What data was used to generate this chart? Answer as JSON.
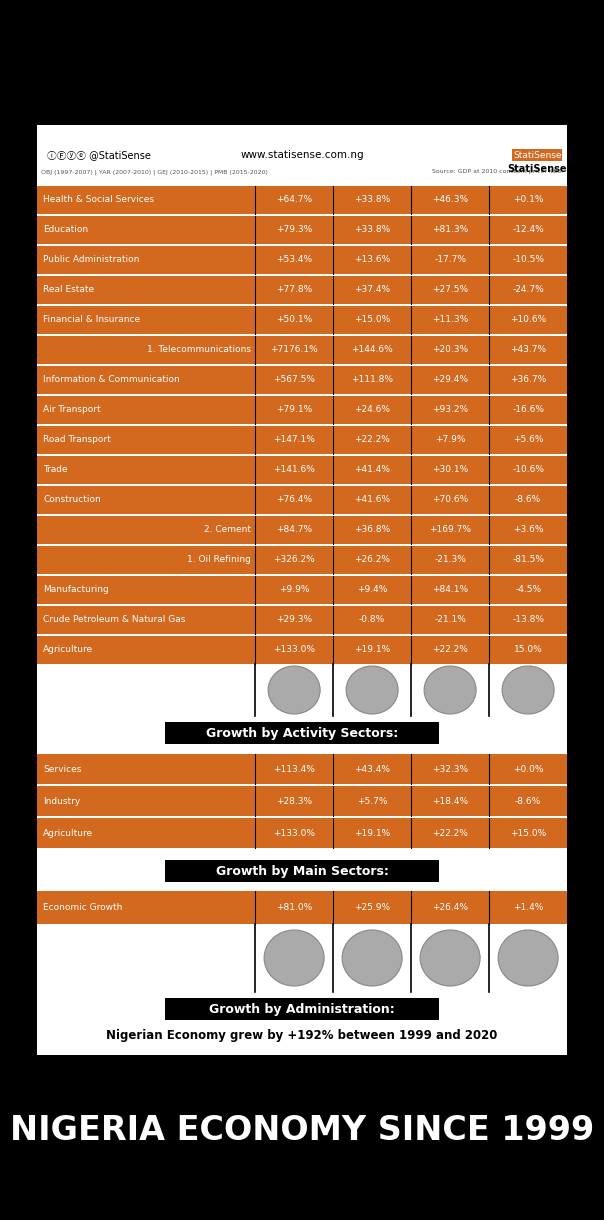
{
  "title": "NIGERIA ECONOMY SINCE 1999",
  "subtitle": "Nigerian Economy grew by +192% between 1999 and 2020",
  "bg_color": "#000000",
  "card_bg": "#ffffff",
  "orange": "#D2691E",
  "black": "#000000",
  "white": "#ffffff",
  "gray_text": "#333333",
  "admin_section_title": "Growth by Administration:",
  "admin_row": {
    "label": "Economic Growth",
    "values": [
      "+81.0%",
      "+25.9%",
      "+26.4%",
      "+1.4%"
    ]
  },
  "main_section_title": "Growth by Main Sectors:",
  "main_rows": [
    {
      "label": "Agriculture",
      "values": [
        "+133.0%",
        "+19.1%",
        "+22.2%",
        "+15.0%"
      ]
    },
    {
      "label": "Industry",
      "values": [
        "+28.3%",
        "+5.7%",
        "+18.4%",
        "-8.6%"
      ]
    },
    {
      "label": "Services",
      "values": [
        "+113.4%",
        "+43.4%",
        "+32.3%",
        "+0.0%"
      ]
    }
  ],
  "activity_section_title": "Growth by Activity Sectors:",
  "activity_rows": [
    {
      "label": "Agriculture",
      "indent": false,
      "values": [
        "+133.0%",
        "+19.1%",
        "+22.2%",
        "15.0%"
      ]
    },
    {
      "label": "Crude Petroleum & Natural Gas",
      "indent": false,
      "values": [
        "+29.3%",
        "-0.8%",
        "-21.1%",
        "-13.8%"
      ]
    },
    {
      "label": "Manufacturing",
      "indent": false,
      "values": [
        "+9.9%",
        "+9.4%",
        "+84.1%",
        "-4.5%"
      ]
    },
    {
      "label": "1. Oil Refining",
      "indent": true,
      "values": [
        "+326.2%",
        "+26.2%",
        "-21.3%",
        "-81.5%"
      ]
    },
    {
      "label": "2. Cement",
      "indent": true,
      "values": [
        "+84.7%",
        "+36.8%",
        "+169.7%",
        "+3.6%"
      ]
    },
    {
      "label": "Construction",
      "indent": false,
      "values": [
        "+76.4%",
        "+41.6%",
        "+70.6%",
        "-8.6%"
      ]
    },
    {
      "label": "Trade",
      "indent": false,
      "values": [
        "+141.6%",
        "+41.4%",
        "+30.1%",
        "-10.6%"
      ]
    },
    {
      "label": "Road Transport",
      "indent": false,
      "values": [
        "+147.1%",
        "+22.2%",
        "+7.9%",
        "+5.6%"
      ]
    },
    {
      "label": "Air Transport",
      "indent": false,
      "values": [
        "+79.1%",
        "+24.6%",
        "+93.2%",
        "-16.6%"
      ]
    },
    {
      "label": "Information & Communication",
      "indent": false,
      "values": [
        "+567.5%",
        "+111.8%",
        "+29.4%",
        "+36.7%"
      ]
    },
    {
      "label": "1. Telecommunications",
      "indent": true,
      "values": [
        "+7176.1%",
        "+144.6%",
        "+20.3%",
        "+43.7%"
      ]
    },
    {
      "label": "Financial & Insurance",
      "indent": false,
      "values": [
        "+50.1%",
        "+15.0%",
        "+11.3%",
        "+10.6%"
      ]
    },
    {
      "label": "Real Estate",
      "indent": false,
      "values": [
        "+77.8%",
        "+37.4%",
        "+27.5%",
        "-24.7%"
      ]
    },
    {
      "label": "Public Administration",
      "indent": false,
      "values": [
        "+53.4%",
        "+13.6%",
        "-17.7%",
        "-10.5%"
      ]
    },
    {
      "label": "Education",
      "indent": false,
      "values": [
        "+79.3%",
        "+33.8%",
        "+81.3%",
        "-12.4%"
      ]
    },
    {
      "label": "Health & Social Services",
      "indent": false,
      "values": [
        "+64.7%",
        "+33.8%",
        "+46.3%",
        "+0.1%"
      ]
    }
  ],
  "footnote": "OBJ (1997-2007) | YAR (2007-2010) | GEJ (2010-2015) | PMB (2015-2020)",
  "source": "Source: GDP at 2010 constant price, NBS.",
  "social": "ⓘⒻⓨⓔ @StatiSense",
  "website": "www.statisense.com.ng",
  "brand": "StatiSense"
}
